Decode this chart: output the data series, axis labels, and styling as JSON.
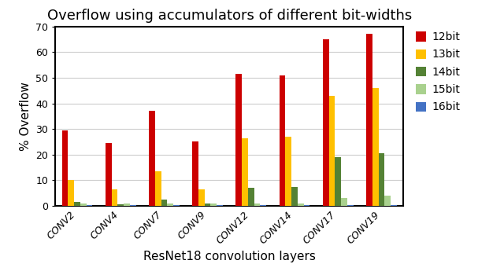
{
  "title": "Overflow using accumulators of different bit-widths",
  "xlabel": "ResNet18 convolution layers",
  "ylabel": "% Overflow",
  "categories": [
    "CONV2",
    "CONV4",
    "CONV7",
    "CONV9",
    "CONV12",
    "CONV14",
    "CONV17",
    "CONV19"
  ],
  "series": [
    {
      "label": "12bit",
      "color": "#CC0000",
      "values": [
        29.5,
        24.5,
        37.0,
        25.0,
        51.5,
        51.0,
        65.0,
        67.0
      ]
    },
    {
      "label": "13bit",
      "color": "#FFC000",
      "values": [
        10.0,
        6.5,
        13.5,
        6.5,
        26.5,
        27.0,
        43.0,
        46.0
      ]
    },
    {
      "label": "14bit",
      "color": "#548235",
      "values": [
        1.5,
        0.5,
        2.5,
        0.8,
        7.0,
        7.5,
        19.0,
        20.5
      ]
    },
    {
      "label": "15bit",
      "color": "#A9D18E",
      "values": [
        1.0,
        0.8,
        1.0,
        0.8,
        1.0,
        1.0,
        3.0,
        4.0
      ]
    },
    {
      "label": "16bit",
      "color": "#4472C4",
      "values": [
        0.3,
        0.3,
        0.3,
        0.3,
        0.3,
        0.3,
        0.3,
        0.3
      ]
    }
  ],
  "ylim": [
    0,
    70
  ],
  "yticks": [
    0,
    10,
    20,
    30,
    40,
    50,
    60,
    70
  ],
  "background_color": "#ffffff",
  "title_fontsize": 13,
  "axis_label_fontsize": 11,
  "tick_fontsize": 9,
  "legend_fontsize": 10,
  "bar_width": 0.14,
  "grid_color": "#CCCCCC"
}
